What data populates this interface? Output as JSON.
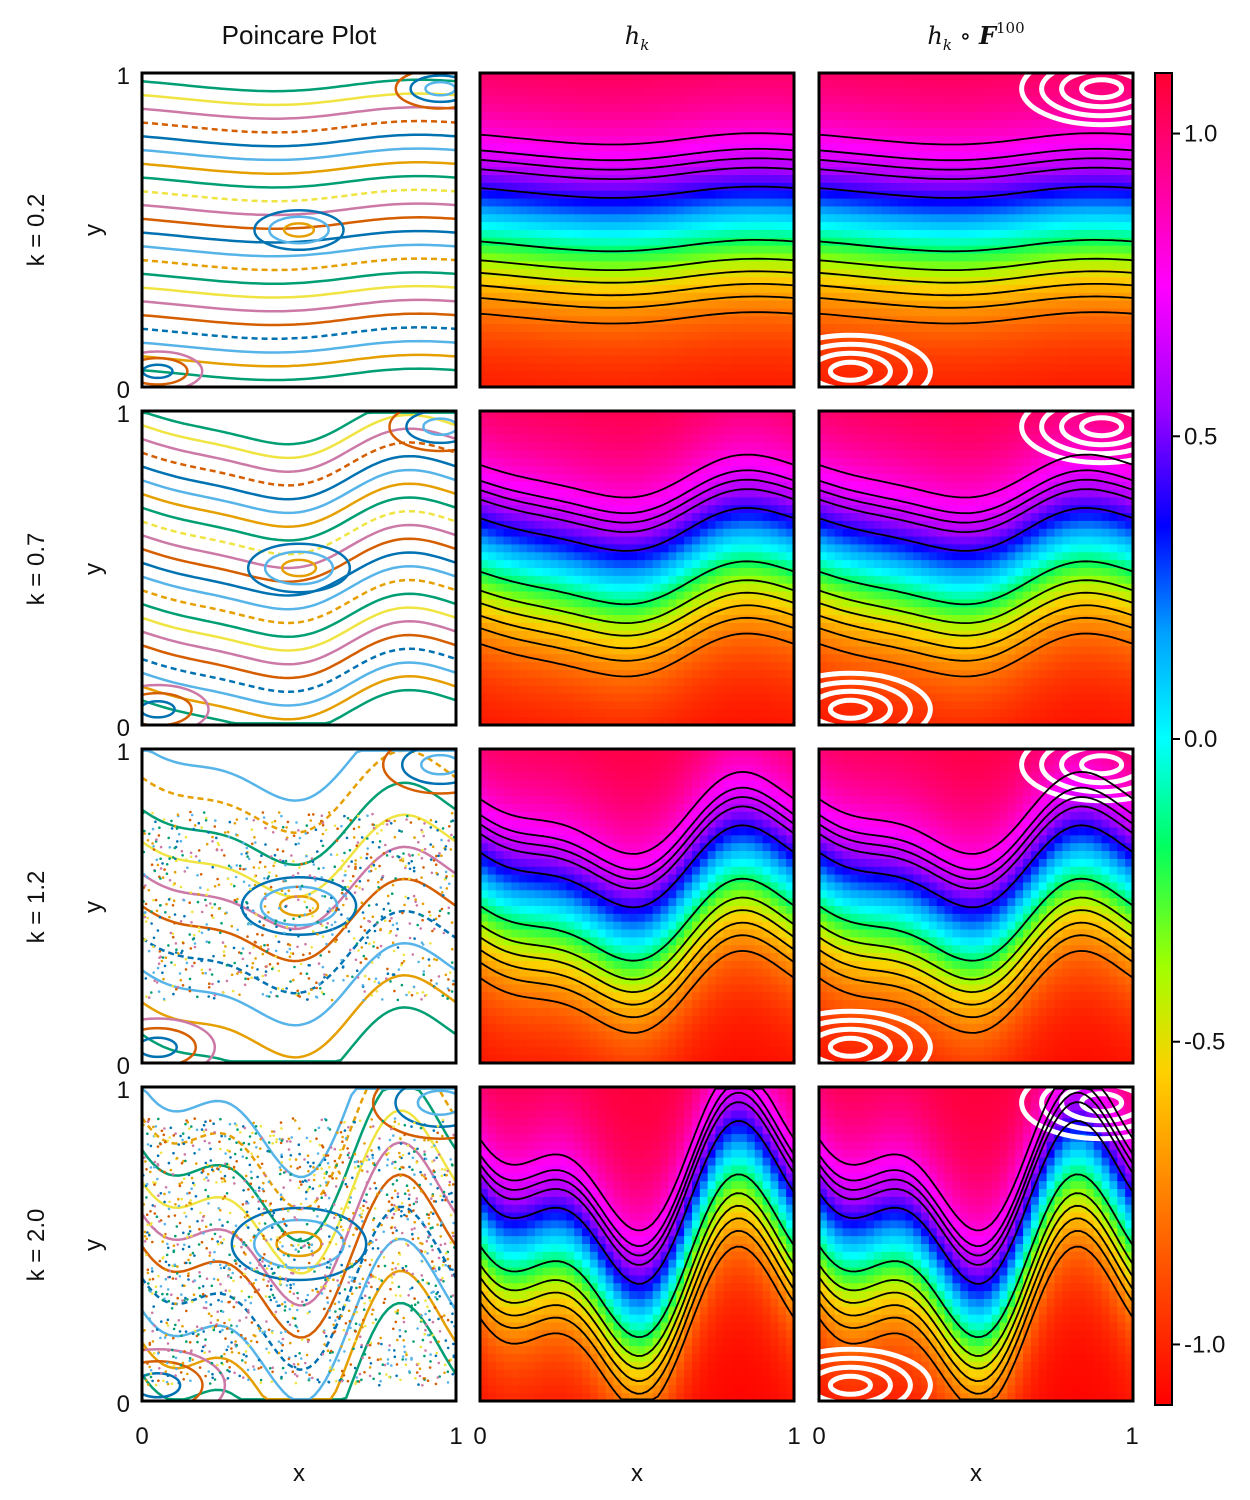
{
  "chart_data": {
    "type": "heatmap",
    "column_titles": {
      "poincare": "Poincare Plot",
      "hk_main": "h",
      "hk_sub": "k",
      "comp_main": "h",
      "comp_sub": "k",
      "comp_op": " ∘ ",
      "comp_F": "F",
      "comp_exp": "100"
    },
    "rows": [
      {
        "label": "k = 0.2",
        "k": 0.2
      },
      {
        "label": "k = 0.7",
        "k": 0.7
      },
      {
        "label": "k = 1.2",
        "k": 1.2
      },
      {
        "label": "k = 2.0",
        "k": 2.0
      }
    ],
    "xlabel": "x",
    "ylabel": "y",
    "xlim": [
      0,
      1
    ],
    "ylim": [
      0,
      1
    ],
    "x_ticks": [
      "0",
      "1"
    ],
    "y_ticks": [
      "0",
      "1"
    ],
    "colorbar": {
      "range": [
        -1.1,
        1.1
      ],
      "ticks": [
        {
          "value": 1.0,
          "label": "1.0"
        },
        {
          "value": 0.5,
          "label": "0.5"
        },
        {
          "value": 0.0,
          "label": "0.0"
        },
        {
          "value": -0.5,
          "label": "-0.5"
        },
        {
          "value": -1.0,
          "label": "-1.0"
        }
      ]
    },
    "poincare_colors": [
      "#009e73",
      "#e69f00",
      "#56b4e9",
      "#0072b2",
      "#d55e00",
      "#cc79a7",
      "#f0e442"
    ]
  }
}
